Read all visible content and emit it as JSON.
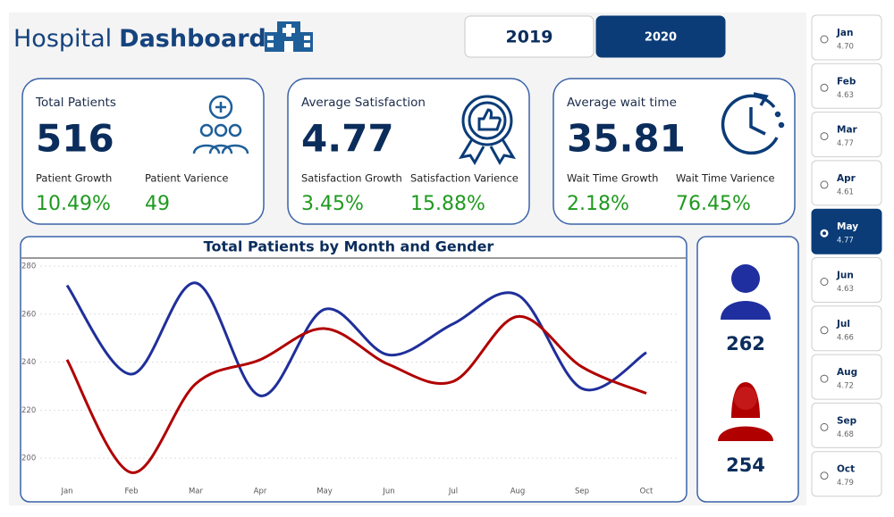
{
  "header": {
    "title_light": "Hospital",
    "title_bold": "Dashboard"
  },
  "years": [
    {
      "label": "2019",
      "selected": false
    },
    {
      "label": "2020",
      "selected": true
    }
  ],
  "kpis": [
    {
      "title": "Total Patients",
      "value": "516",
      "growth_label": "Patient Growth",
      "growth": "10.49%",
      "variance_label": "Patient Varience",
      "variance": "49"
    },
    {
      "title": "Average Satisfaction",
      "value": "4.77",
      "growth_label": "Satisfaction Growth",
      "growth": "3.45%",
      "variance_label": "Satisfaction Varience",
      "variance": "15.88%"
    },
    {
      "title": "Average wait time",
      "value": "35.81",
      "growth_label": "Wait Time Growth",
      "growth": "2.18%",
      "variance_label": "Wait Time Varience",
      "variance": "76.45%"
    }
  ],
  "gender": {
    "male": "262",
    "female": "254"
  },
  "months": [
    {
      "name": "Jan",
      "value": "4.70",
      "selected": false
    },
    {
      "name": "Feb",
      "value": "4.63",
      "selected": false
    },
    {
      "name": "Mar",
      "value": "4.77",
      "selected": false
    },
    {
      "name": "Apr",
      "value": "4.61",
      "selected": false
    },
    {
      "name": "May",
      "value": "4.77",
      "selected": true
    },
    {
      "name": "Jun",
      "value": "4.63",
      "selected": false
    },
    {
      "name": "Jul",
      "value": "4.66",
      "selected": false
    },
    {
      "name": "Aug",
      "value": "4.72",
      "selected": false
    },
    {
      "name": "Sep",
      "value": "4.68",
      "selected": false
    },
    {
      "name": "Oct",
      "value": "4.79",
      "selected": false
    }
  ],
  "chart_data": {
    "type": "line",
    "title": "Total Patients by Month and Gender",
    "categories": [
      "Jan",
      "Feb",
      "Mar",
      "Apr",
      "May",
      "Jun",
      "Jul",
      "Aug",
      "Sep",
      "Oct"
    ],
    "series": [
      {
        "color": "#1f2f9a",
        "values": [
          272,
          235,
          273,
          226,
          262,
          243,
          256,
          268,
          229,
          244
        ]
      },
      {
        "color": "#b00000",
        "values": [
          241,
          194,
          231,
          241,
          254,
          239,
          232,
          259,
          238,
          227
        ]
      }
    ],
    "ylim": [
      190,
      283
    ],
    "yticks": [
      200,
      220,
      240,
      260,
      280
    ],
    "grid": true,
    "smooth": true
  }
}
